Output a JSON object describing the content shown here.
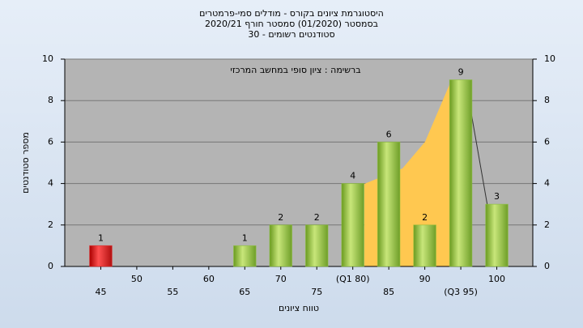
{
  "chart_data": {
    "type": "bar",
    "title": [
      "היסטוגרמת ציונים בקורס - מודלים סמי-פרמטרים",
      "בסמסטר (01/2020) סמסטר חורף 2020/21",
      "סטודנטים רשומים - 30"
    ],
    "annotation": "ברשימה : ציון סופי במחשב המרכזי",
    "x_label": "טווח ציונים",
    "y_label": "מספר סטודנטים",
    "categories": [
      "45",
      "50",
      "55",
      "60",
      "65",
      "70",
      "75",
      "(Q1 80)",
      "85",
      "90",
      "(Q3 95)",
      "100"
    ],
    "values": [
      1,
      0,
      0,
      0,
      1,
      2,
      2,
      4,
      6,
      2,
      9,
      3
    ],
    "colors": [
      "#e02020",
      "#8cbf3c",
      "#8cbf3c",
      "#8cbf3c",
      "#8cbf3c",
      "#8cbf3c",
      "#8cbf3c",
      "#8cbf3c",
      "#8cbf3c",
      "#8cbf3c",
      "#8cbf3c",
      "#8cbf3c"
    ],
    "ylim": [
      0,
      10
    ],
    "yticks": [
      0,
      2,
      4,
      6,
      8,
      10
    ],
    "y2lim": [
      0,
      10
    ],
    "y2ticks": [
      0,
      2,
      4,
      6,
      8,
      10
    ],
    "grid": true
  }
}
